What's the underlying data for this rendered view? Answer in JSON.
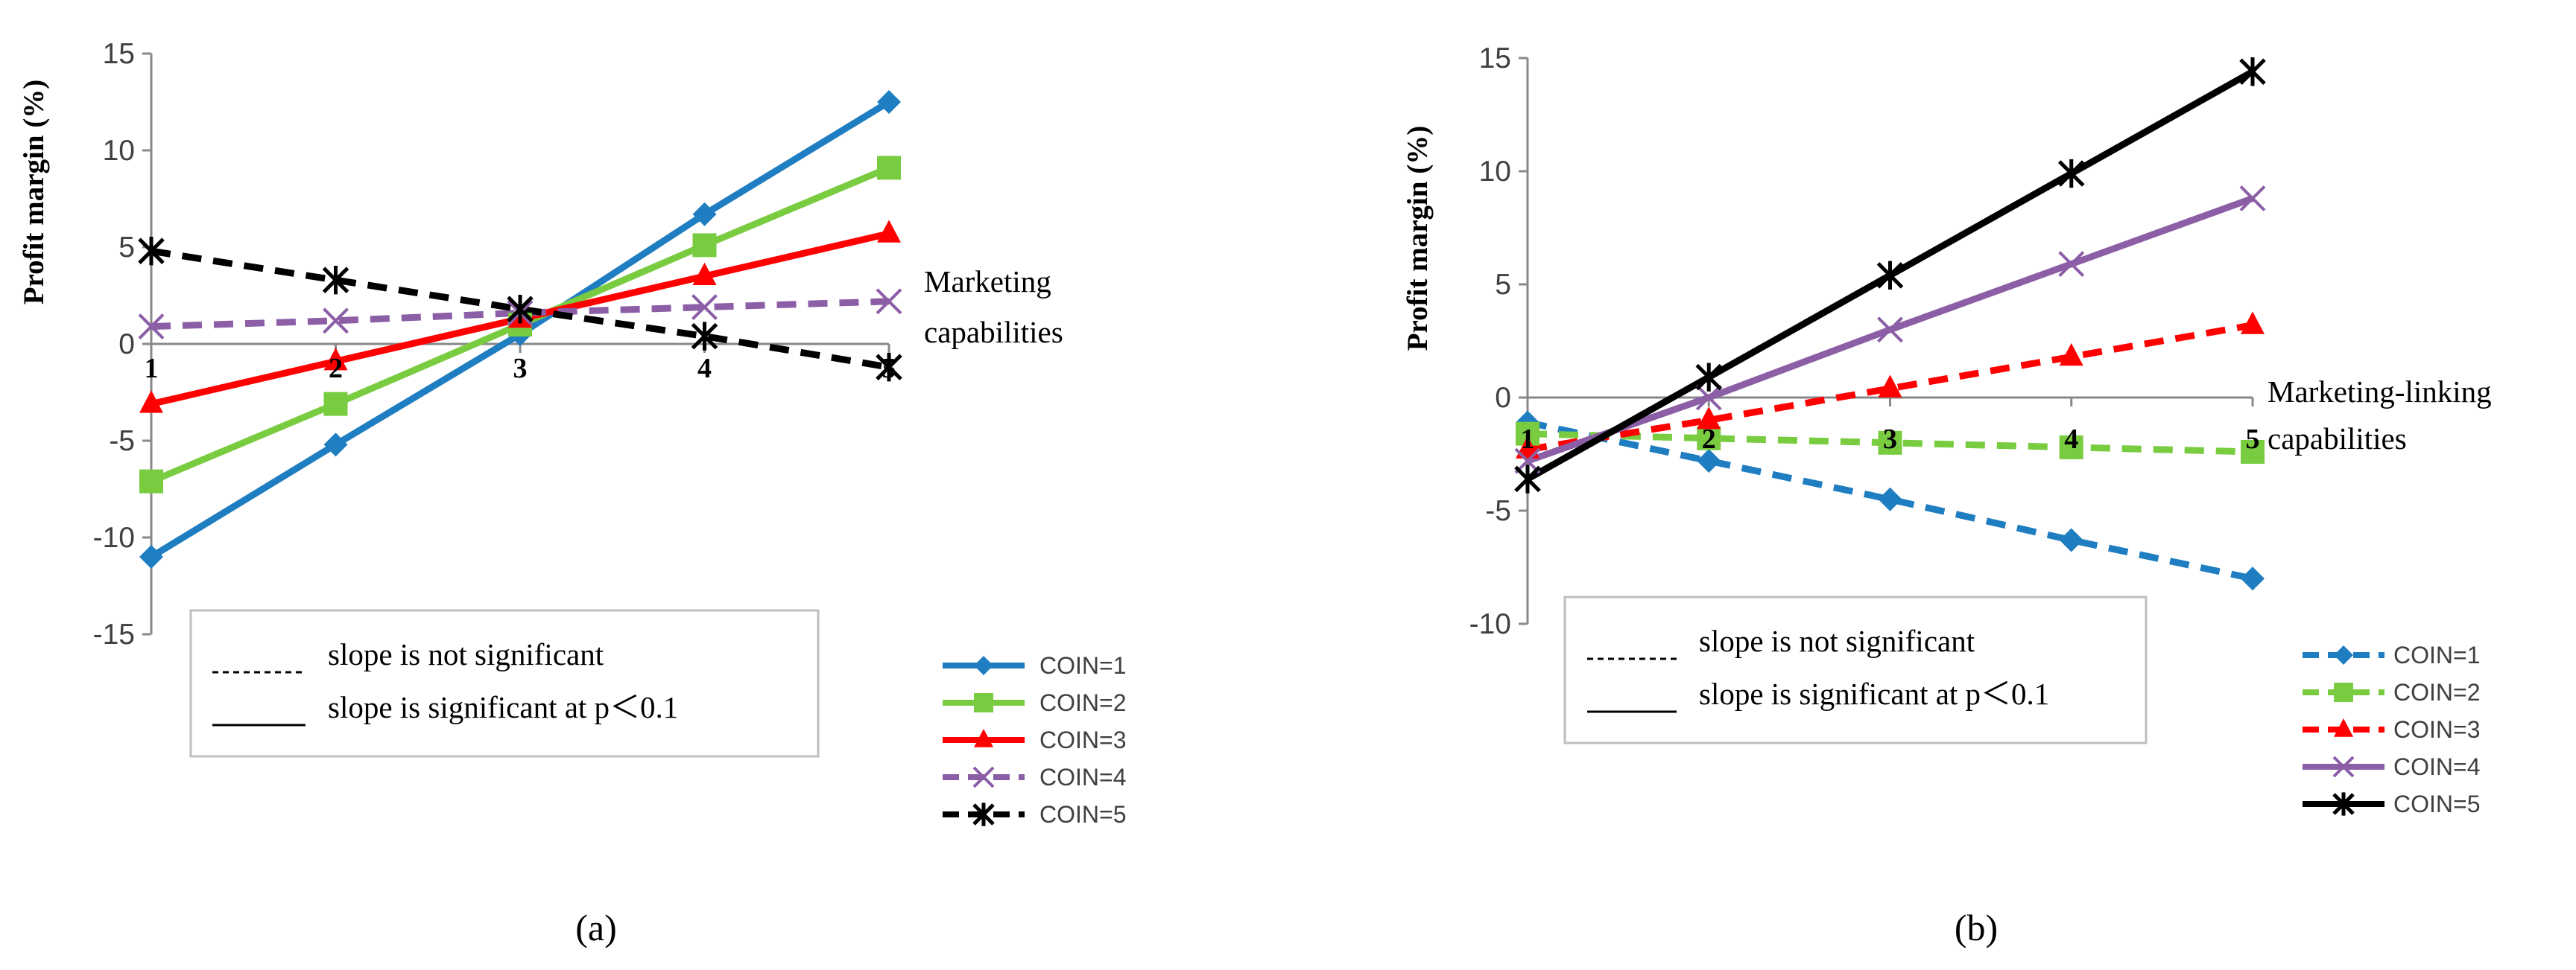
{
  "chart_data": [
    {
      "panel_label": "(a)",
      "type": "line",
      "ylabel": "Profit margin (%)",
      "xlabel": "Marketing capabilities",
      "x": [
        1,
        2,
        3,
        4,
        5
      ],
      "xticks": [
        "1",
        "2",
        "3",
        "4",
        "5"
      ],
      "ylim": [
        -15,
        15
      ],
      "yticks": [
        "15",
        "10",
        "5",
        "0",
        "-5",
        "-10",
        "-15"
      ],
      "series": [
        {
          "name": "COIN=1",
          "values": [
            -11,
            -5.2,
            0.5,
            6.7,
            12.5
          ],
          "color": "#1F7DC1",
          "marker": "diamond",
          "dashed": false
        },
        {
          "name": "COIN=2",
          "values": [
            -7.1,
            -3.1,
            1.0,
            5.1,
            9.1
          ],
          "color": "#79CC40",
          "marker": "square",
          "dashed": false
        },
        {
          "name": "COIN=3",
          "values": [
            -3.1,
            -0.9,
            1.3,
            3.5,
            5.7
          ],
          "color": "#FF0000",
          "marker": "triangle",
          "dashed": false
        },
        {
          "name": "COIN=4",
          "values": [
            0.9,
            1.2,
            1.6,
            1.9,
            2.2
          ],
          "color": "#8B5EA6",
          "marker": "x",
          "dashed": true
        },
        {
          "name": "COIN=5",
          "values": [
            4.8,
            3.3,
            1.8,
            0.4,
            -1.2
          ],
          "color": "#000000",
          "marker": "asterisk",
          "dashed": true
        }
      ],
      "key": {
        "dashed": "slope is not significant",
        "solid": "slope is  significant at p＜0.1"
      }
    },
    {
      "panel_label": "(b)",
      "type": "line",
      "ylabel": "Profit margin (%)",
      "xlabel": "Marketing-linking capabilities",
      "x": [
        1,
        2,
        3,
        4,
        5
      ],
      "xticks": [
        "1",
        "2",
        "3",
        "4",
        "5"
      ],
      "ylim": [
        -10,
        15
      ],
      "yticks": [
        "15",
        "10",
        "5",
        "0",
        "-5",
        "-10"
      ],
      "series": [
        {
          "name": "COIN=1",
          "values": [
            -1.1,
            -2.8,
            -4.5,
            -6.3,
            -8.0
          ],
          "color": "#1F7DC1",
          "marker": "diamond",
          "dashed": true
        },
        {
          "name": "COIN=2",
          "values": [
            -1.6,
            -1.8,
            -2.0,
            -2.2,
            -2.4
          ],
          "color": "#79CC40",
          "marker": "square",
          "dashed": true
        },
        {
          "name": "COIN=3",
          "values": [
            -2.3,
            -1.0,
            0.4,
            1.8,
            3.2
          ],
          "color": "#FF0000",
          "marker": "triangle",
          "dashed": true
        },
        {
          "name": "COIN=4",
          "values": [
            -2.8,
            0.0,
            3.0,
            5.9,
            8.8
          ],
          "color": "#8B5EA6",
          "marker": "x",
          "dashed": false
        },
        {
          "name": "COIN=5",
          "values": [
            -3.6,
            0.9,
            5.4,
            9.9,
            14.4
          ],
          "color": "#000000",
          "marker": "asterisk",
          "dashed": false
        }
      ],
      "key": {
        "dashed": "slope is not significant",
        "solid": "slope is  significant at p＜0.1"
      }
    }
  ]
}
